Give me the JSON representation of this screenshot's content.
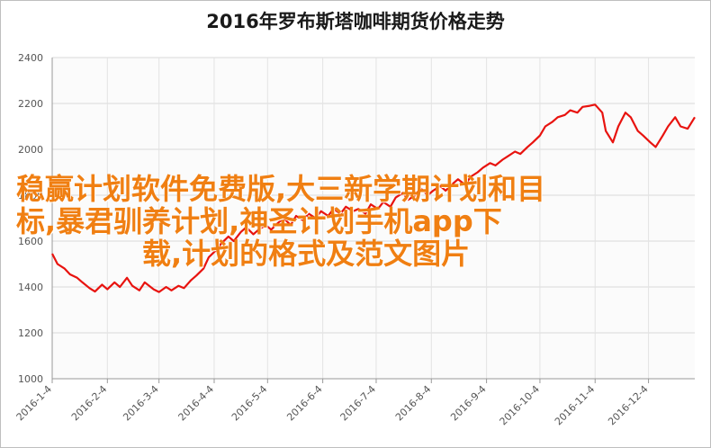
{
  "chart_data": {
    "type": "line",
    "title": "2016年罗布斯塔咖啡期货价格走势",
    "xlabel": "",
    "ylabel": "",
    "ylim": [
      1000,
      2400
    ],
    "yticks": [
      1000,
      1200,
      1400,
      1600,
      1800,
      2000,
      2200,
      2400
    ],
    "x_tick_labels": [
      "2016-1-4",
      "2016-2-4",
      "2016-3-4",
      "2016-4-4",
      "2016-5-4",
      "2016-6-4",
      "2016-7-4",
      "2016-8-4",
      "2016-9-4",
      "2016-10-4",
      "2016-11-4",
      "2016-12-4"
    ],
    "x_tick_dates": [
      "2016-01-04",
      "2016-02-04",
      "2016-03-04",
      "2016-04-04",
      "2016-05-04",
      "2016-06-04",
      "2016-07-04",
      "2016-08-04",
      "2016-09-04",
      "2016-10-04",
      "2016-11-04",
      "2016-12-04"
    ],
    "xlim": [
      "2016-01-04",
      "2016-12-30"
    ],
    "grid": true,
    "legend": "none",
    "series": [
      {
        "color": "#e8130f",
        "points": [
          [
            "2016-01-04",
            1545
          ],
          [
            "2016-01-07",
            1500
          ],
          [
            "2016-01-11",
            1480
          ],
          [
            "2016-01-14",
            1455
          ],
          [
            "2016-01-18",
            1440
          ],
          [
            "2016-01-21",
            1420
          ],
          [
            "2016-01-25",
            1395
          ],
          [
            "2016-01-28",
            1380
          ],
          [
            "2016-02-01",
            1410
          ],
          [
            "2016-02-04",
            1390
          ],
          [
            "2016-02-08",
            1420
          ],
          [
            "2016-02-11",
            1400
          ],
          [
            "2016-02-15",
            1440
          ],
          [
            "2016-02-18",
            1405
          ],
          [
            "2016-02-22",
            1385
          ],
          [
            "2016-02-25",
            1420
          ],
          [
            "2016-03-01",
            1390
          ],
          [
            "2016-03-04",
            1378
          ],
          [
            "2016-03-08",
            1400
          ],
          [
            "2016-03-11",
            1385
          ],
          [
            "2016-03-15",
            1405
          ],
          [
            "2016-03-18",
            1395
          ],
          [
            "2016-03-22",
            1430
          ],
          [
            "2016-03-25",
            1450
          ],
          [
            "2016-03-29",
            1480
          ],
          [
            "2016-04-01",
            1530
          ],
          [
            "2016-04-05",
            1560
          ],
          [
            "2016-04-08",
            1590
          ],
          [
            "2016-04-12",
            1620
          ],
          [
            "2016-04-15",
            1600
          ],
          [
            "2016-04-19",
            1640
          ],
          [
            "2016-04-22",
            1660
          ],
          [
            "2016-04-26",
            1630
          ],
          [
            "2016-04-29",
            1650
          ],
          [
            "2016-05-03",
            1670
          ],
          [
            "2016-05-06",
            1650
          ],
          [
            "2016-05-10",
            1680
          ],
          [
            "2016-05-13",
            1700
          ],
          [
            "2016-05-17",
            1670
          ],
          [
            "2016-05-20",
            1710
          ],
          [
            "2016-05-24",
            1690
          ],
          [
            "2016-05-27",
            1720
          ],
          [
            "2016-05-31",
            1700
          ],
          [
            "2016-06-03",
            1730
          ],
          [
            "2016-06-07",
            1710
          ],
          [
            "2016-06-10",
            1740
          ],
          [
            "2016-06-14",
            1720
          ],
          [
            "2016-06-17",
            1750
          ],
          [
            "2016-06-21",
            1730
          ],
          [
            "2016-06-24",
            1740
          ],
          [
            "2016-06-28",
            1720
          ],
          [
            "2016-07-01",
            1760
          ],
          [
            "2016-07-05",
            1740
          ],
          [
            "2016-07-08",
            1770
          ],
          [
            "2016-07-12",
            1750
          ],
          [
            "2016-07-15",
            1790
          ],
          [
            "2016-07-19",
            1810
          ],
          [
            "2016-07-22",
            1780
          ],
          [
            "2016-07-26",
            1800
          ],
          [
            "2016-07-29",
            1830
          ],
          [
            "2016-08-02",
            1800
          ],
          [
            "2016-08-05",
            1820
          ],
          [
            "2016-08-09",
            1840
          ],
          [
            "2016-08-12",
            1820
          ],
          [
            "2016-08-16",
            1850
          ],
          [
            "2016-08-19",
            1870
          ],
          [
            "2016-08-23",
            1845
          ],
          [
            "2016-08-26",
            1880
          ],
          [
            "2016-08-30",
            1900
          ],
          [
            "2016-09-02",
            1920
          ],
          [
            "2016-09-06",
            1940
          ],
          [
            "2016-09-09",
            1930
          ],
          [
            "2016-09-13",
            1955
          ],
          [
            "2016-09-16",
            1970
          ],
          [
            "2016-09-20",
            1990
          ],
          [
            "2016-09-23",
            1980
          ],
          [
            "2016-09-27",
            2010
          ],
          [
            "2016-09-30",
            2030
          ],
          [
            "2016-10-04",
            2060
          ],
          [
            "2016-10-07",
            2100
          ],
          [
            "2016-10-11",
            2120
          ],
          [
            "2016-10-14",
            2140
          ],
          [
            "2016-10-18",
            2150
          ],
          [
            "2016-10-21",
            2170
          ],
          [
            "2016-10-25",
            2160
          ],
          [
            "2016-10-28",
            2185
          ],
          [
            "2016-11-01",
            2190
          ],
          [
            "2016-11-04",
            2195
          ],
          [
            "2016-11-08",
            2160
          ],
          [
            "2016-11-10",
            2080
          ],
          [
            "2016-11-14",
            2030
          ],
          [
            "2016-11-17",
            2100
          ],
          [
            "2016-11-21",
            2160
          ],
          [
            "2016-11-24",
            2140
          ],
          [
            "2016-11-28",
            2080
          ],
          [
            "2016-12-01",
            2060
          ],
          [
            "2016-12-05",
            2030
          ],
          [
            "2016-12-08",
            2010
          ],
          [
            "2016-12-12",
            2060
          ],
          [
            "2016-12-15",
            2100
          ],
          [
            "2016-12-19",
            2140
          ],
          [
            "2016-12-22",
            2100
          ],
          [
            "2016-12-26",
            2090
          ],
          [
            "2016-12-30",
            2140
          ]
        ]
      }
    ]
  },
  "overlay_text": {
    "line1": "稳赢计划软件免费版,大三新学期计划和目",
    "line2": "标,暴君驯养计划,神圣计划手机app下",
    "line3": "载,计划的格式及范文图片"
  }
}
